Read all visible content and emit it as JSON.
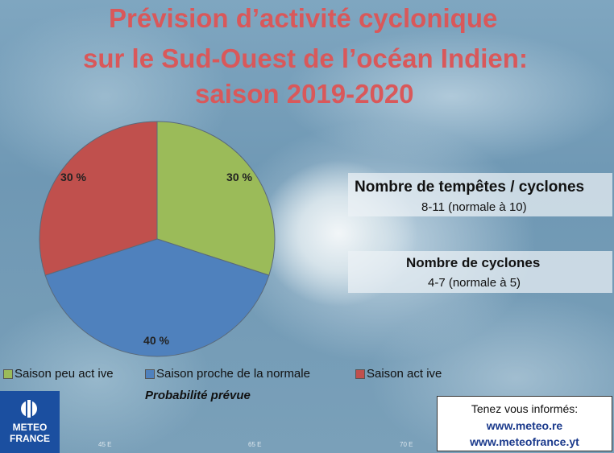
{
  "title": {
    "line1": "Prévision d’activité cyclonique",
    "line2": "sur le Sud-Ouest de l’océan Indien:",
    "line3": "saison 2019-2020"
  },
  "chart_data": {
    "type": "pie",
    "slices": [
      {
        "label": "Saison peu active",
        "value": 30,
        "value_label": "30 %",
        "color": "#9bbb59"
      },
      {
        "label": "Saison proche de la normale",
        "value": 40,
        "value_label": "40 %",
        "color": "#4f81bd"
      },
      {
        "label": "Saison active",
        "value": 30,
        "value_label": "30 %",
        "color": "#c0504d"
      }
    ],
    "legend": [
      "Saison peu active",
      "Saison proche de la normale",
      "Saison active"
    ],
    "legend_position": "bottom",
    "xlabel": "Probabilité prévue"
  },
  "legend_text": {
    "item1": "Saison peu act ive",
    "item2": "Saison proche de la normale",
    "item3": "Saison act ive"
  },
  "forecast": {
    "tempetes_heading": "Nombre de tempêtes / cyclones",
    "tempetes_value": "8-11 (normale à 10)",
    "cyclones_heading": "Nombre de cyclones",
    "cyclones_value": "4-7 (normale à 5)"
  },
  "logo": {
    "line1": "METEO",
    "line2": "FRANCE"
  },
  "contact": {
    "line1": "Tenez vous informés:",
    "line2": "www.meteo.re",
    "line3": "www.meteofrance.yt"
  },
  "map_coords": [
    "45 E",
    "65 E",
    "70 E"
  ]
}
